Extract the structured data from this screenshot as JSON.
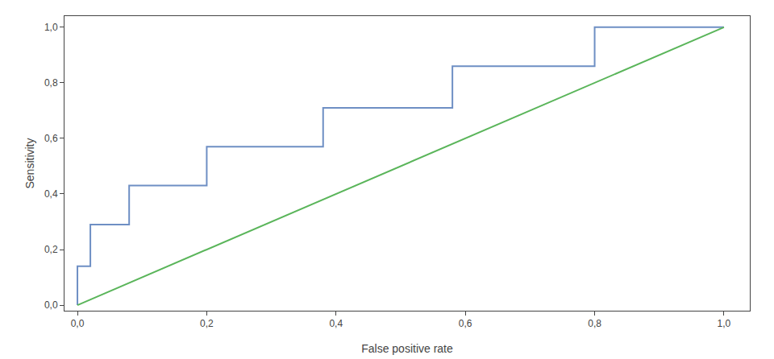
{
  "chart_data": {
    "type": "line",
    "xlabel": "False positive rate",
    "ylabel": "Sensitivity",
    "series": [
      {
        "x": [
          0.0,
          0.0,
          0.02,
          0.02,
          0.08,
          0.08,
          0.2,
          0.2,
          0.38,
          0.38,
          0.58,
          0.58,
          0.8,
          0.8,
          1.0
        ],
        "values": [
          0.0,
          0.14,
          0.14,
          0.29,
          0.29,
          0.43,
          0.43,
          0.57,
          0.57,
          0.71,
          0.71,
          0.86,
          0.86,
          1.0,
          1.0
        ],
        "color": "#6e8fc4"
      },
      {
        "x": [
          0.0,
          1.0
        ],
        "values": [
          0.0,
          1.0
        ],
        "color": "#5ab55a"
      }
    ],
    "xlim": [
      -0.02,
      1.04
    ],
    "ylim": [
      -0.02,
      1.04
    ],
    "xticks": [
      {
        "value": 0.0,
        "label": "0,0"
      },
      {
        "value": 0.2,
        "label": "0,2"
      },
      {
        "value": 0.4,
        "label": "0,4"
      },
      {
        "value": 0.6,
        "label": "0,6"
      },
      {
        "value": 0.8,
        "label": "0,8"
      },
      {
        "value": 1.0,
        "label": "1,0"
      }
    ],
    "yticks": [
      {
        "value": 0.0,
        "label": "0,0"
      },
      {
        "value": 0.2,
        "label": "0,2"
      },
      {
        "value": 0.4,
        "label": "0,4"
      },
      {
        "value": 0.6,
        "label": "0,6"
      },
      {
        "value": 0.8,
        "label": "0,8"
      },
      {
        "value": 1.0,
        "label": "1,0"
      }
    ],
    "grid": false
  }
}
